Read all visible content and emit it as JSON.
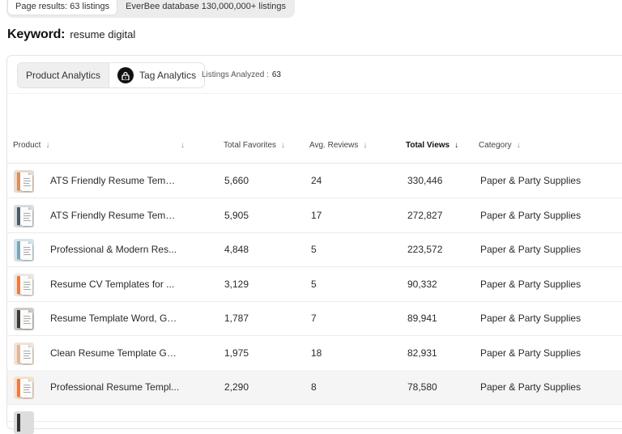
{
  "source_tabs": [
    {
      "label": "Page results: 63 listings",
      "active": true
    },
    {
      "label": "EverBee database 130,000,000+ listings",
      "active": false
    }
  ],
  "keyword": {
    "label": "Keyword:",
    "value": "resume digital"
  },
  "analytics_tabs": {
    "product": "Product Analytics",
    "tag": "Tag Analytics"
  },
  "listings_analyzed": {
    "label": "Listings Analyzed :",
    "value": "63"
  },
  "columns": {
    "product": "Product",
    "favorites": "Total Favorites",
    "reviews": "Avg. Reviews",
    "views": "Total Views",
    "category": "Category",
    "sorted_by": "Total Views",
    "sort_direction": "descending"
  },
  "icons": {
    "sort": "arrow-down-icon",
    "lock": "lock-icon"
  },
  "colors": {
    "row_highlight": "#f5f5f5",
    "thumb_accent": "#f07a3c"
  },
  "rows": [
    {
      "name": "ATS Friendly Resume Templ...",
      "favorites": "5,660",
      "reviews": "24",
      "views": "330,446",
      "category": "Paper & Party Supplies"
    },
    {
      "name": "ATS Friendly Resume Templ...",
      "favorites": "5,905",
      "reviews": "17",
      "views": "272,827",
      "category": "Paper & Party Supplies"
    },
    {
      "name": "Professional & Modern Res...",
      "favorites": "4,848",
      "reviews": "5",
      "views": "223,572",
      "category": "Paper & Party Supplies"
    },
    {
      "name": "Resume CV Templates for ...",
      "favorites": "3,129",
      "reviews": "5",
      "views": "90,332",
      "category": "Paper & Party Supplies"
    },
    {
      "name": "Resume Template Word, Go...",
      "favorites": "1,787",
      "reviews": "7",
      "views": "89,941",
      "category": "Paper & Party Supplies"
    },
    {
      "name": "Clean Resume Template Go...",
      "favorites": "1,975",
      "reviews": "18",
      "views": "82,931",
      "category": "Paper & Party Supplies"
    },
    {
      "name": "Professional Resume Templ...",
      "favorites": "2,290",
      "reviews": "8",
      "views": "78,580",
      "category": "Paper & Party Supplies"
    }
  ]
}
